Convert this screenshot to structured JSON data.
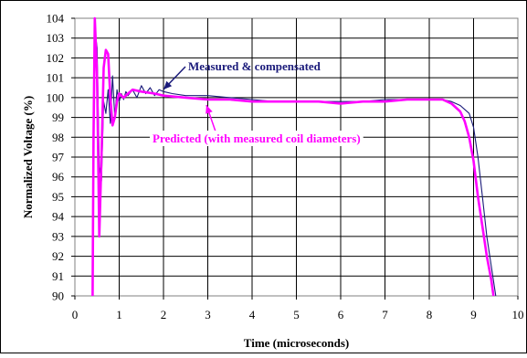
{
  "chart_data": {
    "type": "line",
    "title": "",
    "xlabel": "Time (microseconds)",
    "ylabel": "Normalized Voltage (%)",
    "xlim": [
      0,
      10
    ],
    "ylim": [
      90,
      104
    ],
    "xticks": [
      "0",
      "1",
      "2",
      "3",
      "4",
      "5",
      "6",
      "7",
      "8",
      "9",
      "10"
    ],
    "yticks": [
      "90",
      "91",
      "92",
      "93",
      "94",
      "95",
      "96",
      "97",
      "98",
      "99",
      "100",
      "101",
      "102",
      "103",
      "104"
    ],
    "grid": true,
    "legend": "none",
    "annotations": [
      {
        "text": "Measured & compensated",
        "color": "#1a1a7a",
        "series": 0
      },
      {
        "text": "Predicted (with measured coil diameters)",
        "color": "#ff00ff",
        "series": 1
      }
    ],
    "series": [
      {
        "name": "Measured & compensated",
        "color": "#1a1a7a",
        "x": [
          0.4,
          0.45,
          0.5,
          0.55,
          0.6,
          0.65,
          0.7,
          0.75,
          0.8,
          0.85,
          0.9,
          0.95,
          1.0,
          1.05,
          1.1,
          1.15,
          1.2,
          1.3,
          1.4,
          1.5,
          1.6,
          1.7,
          1.8,
          1.9,
          2.0,
          2.2,
          2.5,
          3.0,
          3.5,
          4.0,
          4.5,
          5.0,
          5.5,
          6.0,
          6.5,
          7.0,
          7.5,
          8.0,
          8.3,
          8.5,
          8.7,
          8.9,
          9.0,
          9.1,
          9.2,
          9.3,
          9.4,
          9.5
        ],
        "y": [
          90.0,
          103.5,
          102.5,
          96.5,
          95.8,
          99.8,
          99.2,
          100.4,
          98.7,
          101.1,
          99.0,
          100.4,
          99.8,
          100.2,
          99.9,
          100.3,
          100.1,
          100.4,
          100.0,
          100.6,
          100.2,
          100.5,
          100.1,
          100.4,
          100.3,
          100.2,
          100.1,
          100.1,
          100.0,
          99.9,
          99.8,
          99.8,
          99.8,
          99.8,
          99.8,
          99.9,
          99.9,
          99.9,
          99.9,
          99.8,
          99.6,
          99.2,
          98.5,
          97.0,
          95.0,
          93.0,
          91.5,
          90.0
        ]
      },
      {
        "name": "Predicted (with measured coil diameters)",
        "color": "#ff00ff",
        "x": [
          0.4,
          0.42,
          0.45,
          0.5,
          0.55,
          0.6,
          0.65,
          0.7,
          0.75,
          0.8,
          0.85,
          0.9,
          0.95,
          1.0,
          1.05,
          1.1,
          1.2,
          1.3,
          1.5,
          1.8,
          2.0,
          2.5,
          3.0,
          3.5,
          4.0,
          4.5,
          5.0,
          5.5,
          6.0,
          6.5,
          7.0,
          7.5,
          8.0,
          8.3,
          8.5,
          8.7,
          8.8,
          8.9,
          9.0,
          9.1,
          9.2,
          9.3,
          9.4,
          9.45
        ],
        "y": [
          90.0,
          98.0,
          104.0,
          101.0,
          93.0,
          97.0,
          101.5,
          102.4,
          102.2,
          100.0,
          98.6,
          99.0,
          99.8,
          100.2,
          100.1,
          100.0,
          100.2,
          100.4,
          100.3,
          100.2,
          100.1,
          100.0,
          99.9,
          99.9,
          99.8,
          99.8,
          99.8,
          99.8,
          99.7,
          99.8,
          99.8,
          99.9,
          99.9,
          99.9,
          99.7,
          99.3,
          98.8,
          98.0,
          96.8,
          95.0,
          93.5,
          92.0,
          90.8,
          90.0
        ]
      }
    ]
  }
}
